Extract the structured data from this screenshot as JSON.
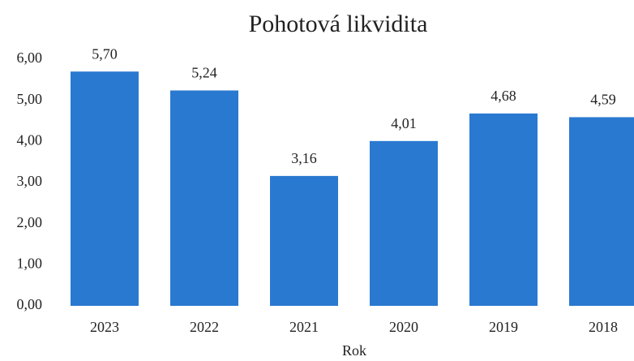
{
  "chart_data": {
    "type": "bar",
    "title": "Pohotová likvidita",
    "x_label": "Rok",
    "categories": [
      "2023",
      "2022",
      "2021",
      "2020",
      "2019",
      "2018"
    ],
    "values": [
      5.7,
      5.24,
      3.16,
      4.01,
      4.68,
      4.59
    ],
    "value_labels": [
      "5,70",
      "5,24",
      "3,16",
      "4,01",
      "4,68",
      "4,59"
    ],
    "color": "#2a79d0",
    "ylim": [
      0,
      6
    ],
    "yticks": [
      {
        "value": 0,
        "label": "0,00"
      },
      {
        "value": 1,
        "label": "1,00"
      },
      {
        "value": 2,
        "label": "2,00"
      },
      {
        "value": 3,
        "label": "3,00"
      },
      {
        "value": 4,
        "label": "4,00"
      },
      {
        "value": 5,
        "label": "5,00"
      },
      {
        "value": 6,
        "label": "6,00"
      }
    ],
    "grid": false
  }
}
